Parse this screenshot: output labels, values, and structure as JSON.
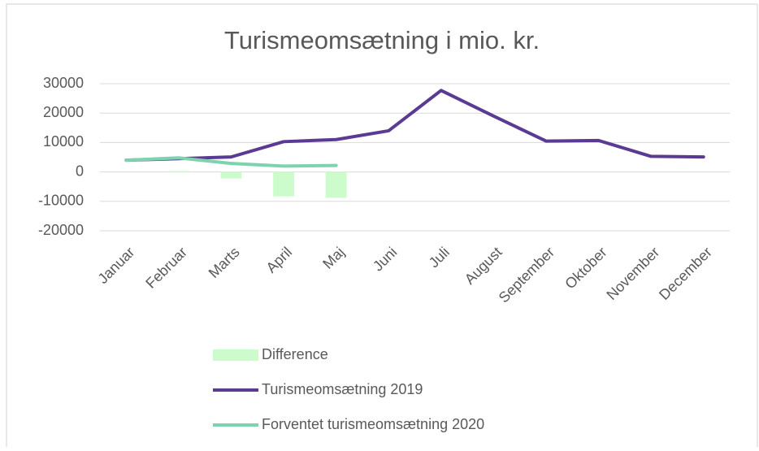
{
  "chart_data": {
    "type": "combo",
    "title": "Turismeomsætning i mio. kr.",
    "categories": [
      "Januar",
      "Februar",
      "Marts",
      "April",
      "Maj",
      "Juni",
      "Juli",
      "August",
      "September",
      "Oktober",
      "November",
      "December"
    ],
    "series": [
      {
        "name": "Difference",
        "type": "bar",
        "color": "#ccfccc",
        "values": [
          0,
          300,
          -2200,
          -8300,
          -8800,
          null,
          null,
          null,
          null,
          null,
          null,
          null
        ]
      },
      {
        "name": "Turismeomsætning 2019",
        "type": "line",
        "color": "#5a3a92",
        "values": [
          4000,
          4500,
          5100,
          10300,
          11000,
          14000,
          27700,
          19000,
          10500,
          10700,
          5300,
          5100
        ]
      },
      {
        "name": "Forventet turismeomsætning 2020",
        "type": "line",
        "color": "#7dd3ad",
        "values": [
          4000,
          4800,
          2900,
          2000,
          2200,
          null,
          null,
          null,
          null,
          null,
          null,
          null
        ]
      }
    ],
    "ylim": [
      -20000,
      30000
    ],
    "yticks": [
      -20000,
      -10000,
      0,
      10000,
      20000,
      30000
    ],
    "grid": true,
    "legend": "bottom"
  }
}
